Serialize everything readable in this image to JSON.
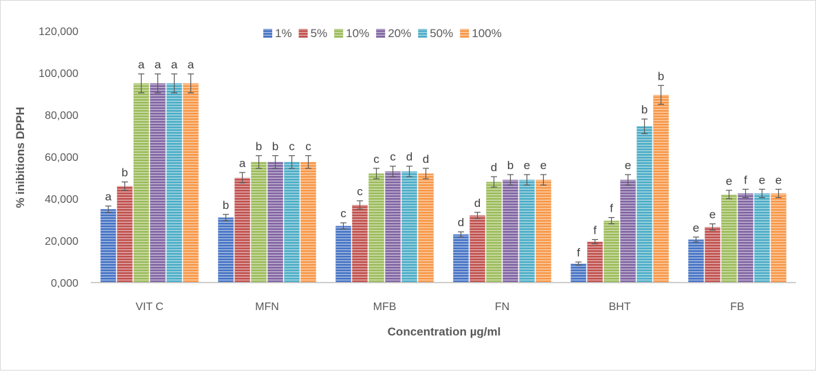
{
  "chart_data": {
    "type": "bar",
    "title": "",
    "xlabel": "Concentration µg/ml",
    "ylabel": "% inibitions DPPH",
    "categories": [
      "VIT C",
      "MFN",
      "MFB",
      "FN",
      "BHT",
      "FB"
    ],
    "ylim": [
      0,
      120
    ],
    "yticks": [
      0,
      20,
      40,
      60,
      80,
      100,
      120
    ],
    "ytick_labels": [
      "0,000",
      "20,000",
      "40,000",
      "60,000",
      "80,000",
      "100,000",
      "120,000"
    ],
    "grid": false,
    "legend_position": "top",
    "series": [
      {
        "name": "1%",
        "color": "#4472C4",
        "values": [
          35,
          31,
          27,
          23,
          9,
          20.5
        ],
        "errors": [
          1.5,
          1.5,
          1.5,
          1.2,
          0.8,
          1.2
        ],
        "labels": [
          "a",
          "b",
          "c",
          "d",
          "f",
          "e"
        ]
      },
      {
        "name": "5%",
        "color": "#C0504D",
        "values": [
          46,
          50,
          37,
          32,
          19.5,
          26.5
        ],
        "errors": [
          2,
          2.5,
          2,
          1.5,
          1,
          1.5
        ],
        "labels": [
          "b",
          "a",
          "c",
          "d",
          "f",
          "e"
        ]
      },
      {
        "name": "10%",
        "color": "#9BBB59",
        "values": [
          95,
          57.5,
          52,
          48,
          29.5,
          42
        ],
        "errors": [
          4.5,
          3,
          2.5,
          2.5,
          1.5,
          2
        ],
        "labels": [
          "a",
          "b",
          "c",
          "d",
          "f",
          "e"
        ]
      },
      {
        "name": "20%",
        "color": "#8064A2",
        "values": [
          95,
          57.5,
          53,
          49,
          49,
          42.5
        ],
        "errors": [
          4.5,
          3,
          2.5,
          2.5,
          2.5,
          2
        ],
        "labels": [
          "a",
          "b",
          "c",
          "b",
          "e",
          "f"
        ]
      },
      {
        "name": "50%",
        "color": "#4BACC6",
        "values": [
          95,
          57.5,
          53,
          49,
          74.5,
          42.5
        ],
        "errors": [
          4.5,
          3,
          2.5,
          2.5,
          3.5,
          2
        ],
        "labels": [
          "a",
          "c",
          "d",
          "e",
          "b",
          "e"
        ]
      },
      {
        "name": "100%",
        "color": "#F79646",
        "values": [
          95,
          57.5,
          52,
          49,
          89.5,
          42.5
        ],
        "errors": [
          4.5,
          3,
          2.5,
          2.5,
          4.5,
          2
        ],
        "labels": [
          "a",
          "c",
          "d",
          "e",
          "b",
          "e"
        ]
      }
    ]
  }
}
